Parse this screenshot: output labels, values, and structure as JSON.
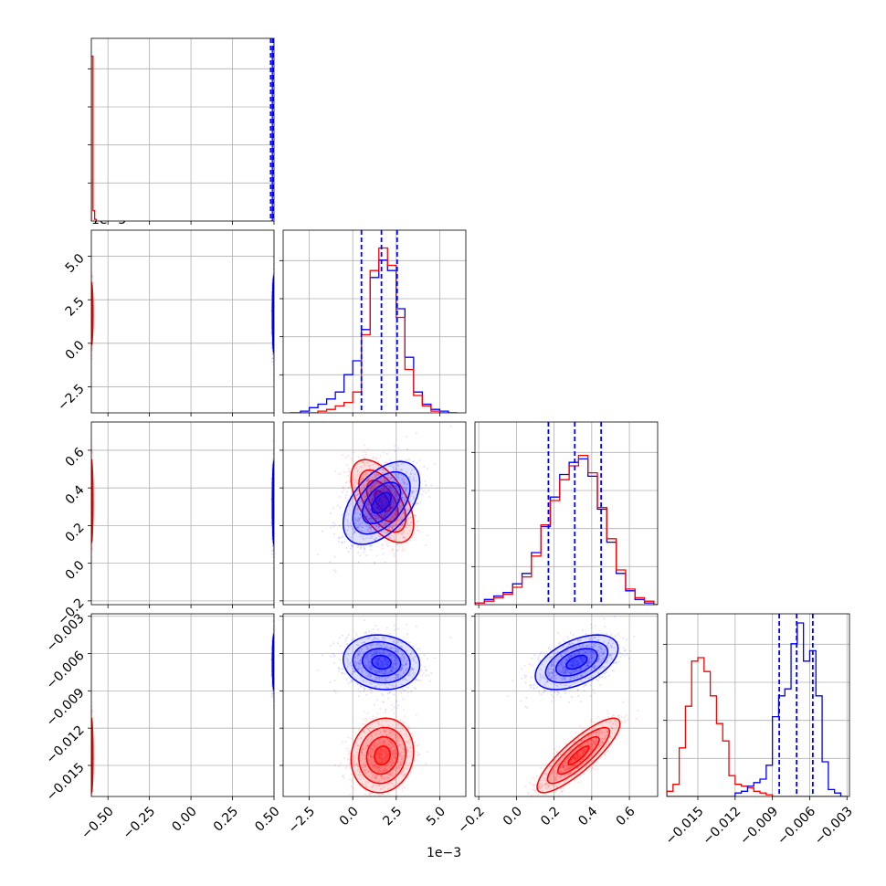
{
  "figure": {
    "offset_label_top": "1e−3",
    "offset_label_bottom": "1e−3"
  },
  "chart_data": {
    "type": "scatter",
    "subtype": "corner-plot",
    "grid": true,
    "colors": {
      "blue": "#0000ff",
      "red": "#ff0000",
      "grid": "#b0b0b0",
      "axes": "#000000"
    },
    "parameters": [
      {
        "range": [
          -0.6,
          0.5
        ],
        "ticks": [
          -0.5,
          -0.25,
          0.0,
          0.25,
          0.5
        ],
        "tick_labels": [
          "−0.50",
          "−0.25",
          "0.00",
          "0.25",
          "0.50"
        ]
      },
      {
        "range": [
          -4.0,
          6.5
        ],
        "ticks": [
          -2.5,
          0.0,
          2.5,
          5.0
        ],
        "tick_labels": [
          "−2.5",
          "0.0",
          "2.5",
          "5.0"
        ],
        "offset": "1e−3"
      },
      {
        "range": [
          -0.22,
          0.75
        ],
        "ticks": [
          -0.2,
          0.0,
          0.2,
          0.4,
          0.6
        ],
        "tick_labels": [
          "−0.2",
          "0.0",
          "0.2",
          "0.4",
          "0.6"
        ]
      },
      {
        "range": [
          -0.0175,
          -0.0028
        ],
        "ticks": [
          -0.003,
          -0.006,
          -0.009,
          -0.012,
          -0.015
        ],
        "tick_labels": [
          "−0.003",
          "−0.006",
          "−0.009",
          "−0.012",
          "−0.015"
        ]
      }
    ],
    "diag_hist": [
      {
        "red": {
          "x": [
            -0.6,
            -0.59,
            -0.58,
            -0.57
          ],
          "y": [
            0.95,
            0.06,
            0.01,
            0.0
          ]
        },
        "blue": {
          "x": [
            0.48,
            0.49,
            0.5,
            0.51
          ],
          "y": [
            0.0,
            1.0,
            1.0,
            0.0
          ]
        },
        "quantiles": [
          0.48,
          0.492,
          0.5
        ]
      },
      {
        "bins": [
          -3.6,
          -3.0,
          -2.5,
          -2.0,
          -1.5,
          -1.0,
          -0.5,
          0.0,
          0.5,
          1.0,
          1.5,
          2.0,
          2.5,
          3.0,
          3.5,
          4.0,
          4.5,
          5.0,
          5.5,
          6.0
        ],
        "blue": [
          0.0,
          0.01,
          0.03,
          0.05,
          0.08,
          0.12,
          0.22,
          0.3,
          0.48,
          0.78,
          0.88,
          0.82,
          0.6,
          0.32,
          0.12,
          0.05,
          0.02,
          0.01,
          0.0
        ],
        "red": [
          0.0,
          0.0,
          0.0,
          0.01,
          0.02,
          0.04,
          0.06,
          0.12,
          0.45,
          0.82,
          0.95,
          0.85,
          0.55,
          0.25,
          0.1,
          0.04,
          0.01,
          0.0,
          0.0
        ],
        "quantiles": [
          0.5,
          1.65,
          2.55
        ]
      },
      {
        "bins": [
          -0.22,
          -0.17,
          -0.12,
          -0.07,
          -0.02,
          0.03,
          0.08,
          0.13,
          0.18,
          0.23,
          0.28,
          0.33,
          0.38,
          0.43,
          0.48,
          0.53,
          0.58,
          0.63,
          0.68,
          0.73,
          0.75
        ],
        "blue": [
          0.01,
          0.03,
          0.05,
          0.07,
          0.12,
          0.18,
          0.3,
          0.45,
          0.62,
          0.75,
          0.82,
          0.84,
          0.74,
          0.55,
          0.36,
          0.18,
          0.08,
          0.03,
          0.01,
          0.0
        ],
        "red": [
          0.01,
          0.02,
          0.04,
          0.06,
          0.1,
          0.16,
          0.28,
          0.46,
          0.6,
          0.72,
          0.8,
          0.86,
          0.76,
          0.56,
          0.38,
          0.2,
          0.09,
          0.04,
          0.02,
          0.0
        ],
        "quantiles": [
          0.17,
          0.31,
          0.45
        ]
      },
      {
        "bins": [
          -0.0175,
          -0.017,
          -0.0165,
          -0.016,
          -0.0155,
          -0.015,
          -0.0145,
          -0.014,
          -0.0135,
          -0.013,
          -0.0125,
          -0.012,
          -0.0115,
          -0.011,
          -0.0105,
          -0.01,
          -0.0095,
          -0.009,
          -0.0085,
          -0.008,
          -0.0075,
          -0.007,
          -0.0065,
          -0.006,
          -0.0055,
          -0.005,
          -0.0045,
          -0.004,
          -0.0035,
          -0.003
        ],
        "red": [
          0.03,
          0.07,
          0.28,
          0.52,
          0.78,
          0.8,
          0.72,
          0.58,
          0.42,
          0.32,
          0.12,
          0.07,
          0.06,
          0.05,
          0.03,
          0.02,
          0.01,
          0.0,
          0.0,
          0.0,
          0.0,
          0.0,
          0.0,
          0.0,
          0.0,
          0.0,
          0.0,
          0.0,
          0.0
        ],
        "blue": [
          0.0,
          0.0,
          0.0,
          0.0,
          0.0,
          0.0,
          0.0,
          0.0,
          0.0,
          0.0,
          0.0,
          0.02,
          0.03,
          0.06,
          0.08,
          0.1,
          0.18,
          0.46,
          0.58,
          0.62,
          0.88,
          1.0,
          0.78,
          0.84,
          0.58,
          0.2,
          0.04,
          0.02,
          0.0
        ],
        "quantiles": [
          -0.00845,
          -0.00705,
          -0.00575
        ]
      }
    ],
    "clusters": {
      "blue": {
        "mean": [
          0.5,
          1.65,
          0.32,
          -0.0067
        ],
        "std": [
          0.005,
          1.1,
          0.11,
          0.0011
        ],
        "corr": [
          [
            1,
            0,
            0,
            0
          ],
          [
            0,
            1,
            0.5,
            -0.1
          ],
          [
            0,
            0.5,
            1,
            0.5
          ],
          [
            0,
            -0.1,
            0.5,
            1
          ]
        ]
      },
      "red": {
        "mean": [
          -0.6,
          1.7,
          0.33,
          -0.0142
        ],
        "std": [
          0.005,
          0.9,
          0.11,
          0.0015
        ],
        "corr": [
          [
            1,
            0,
            0,
            0
          ],
          [
            0,
            1,
            -0.55,
            0.1
          ],
          [
            0,
            -0.55,
            1,
            0.85
          ],
          [
            0,
            0.1,
            0.85,
            1
          ]
        ]
      }
    }
  }
}
